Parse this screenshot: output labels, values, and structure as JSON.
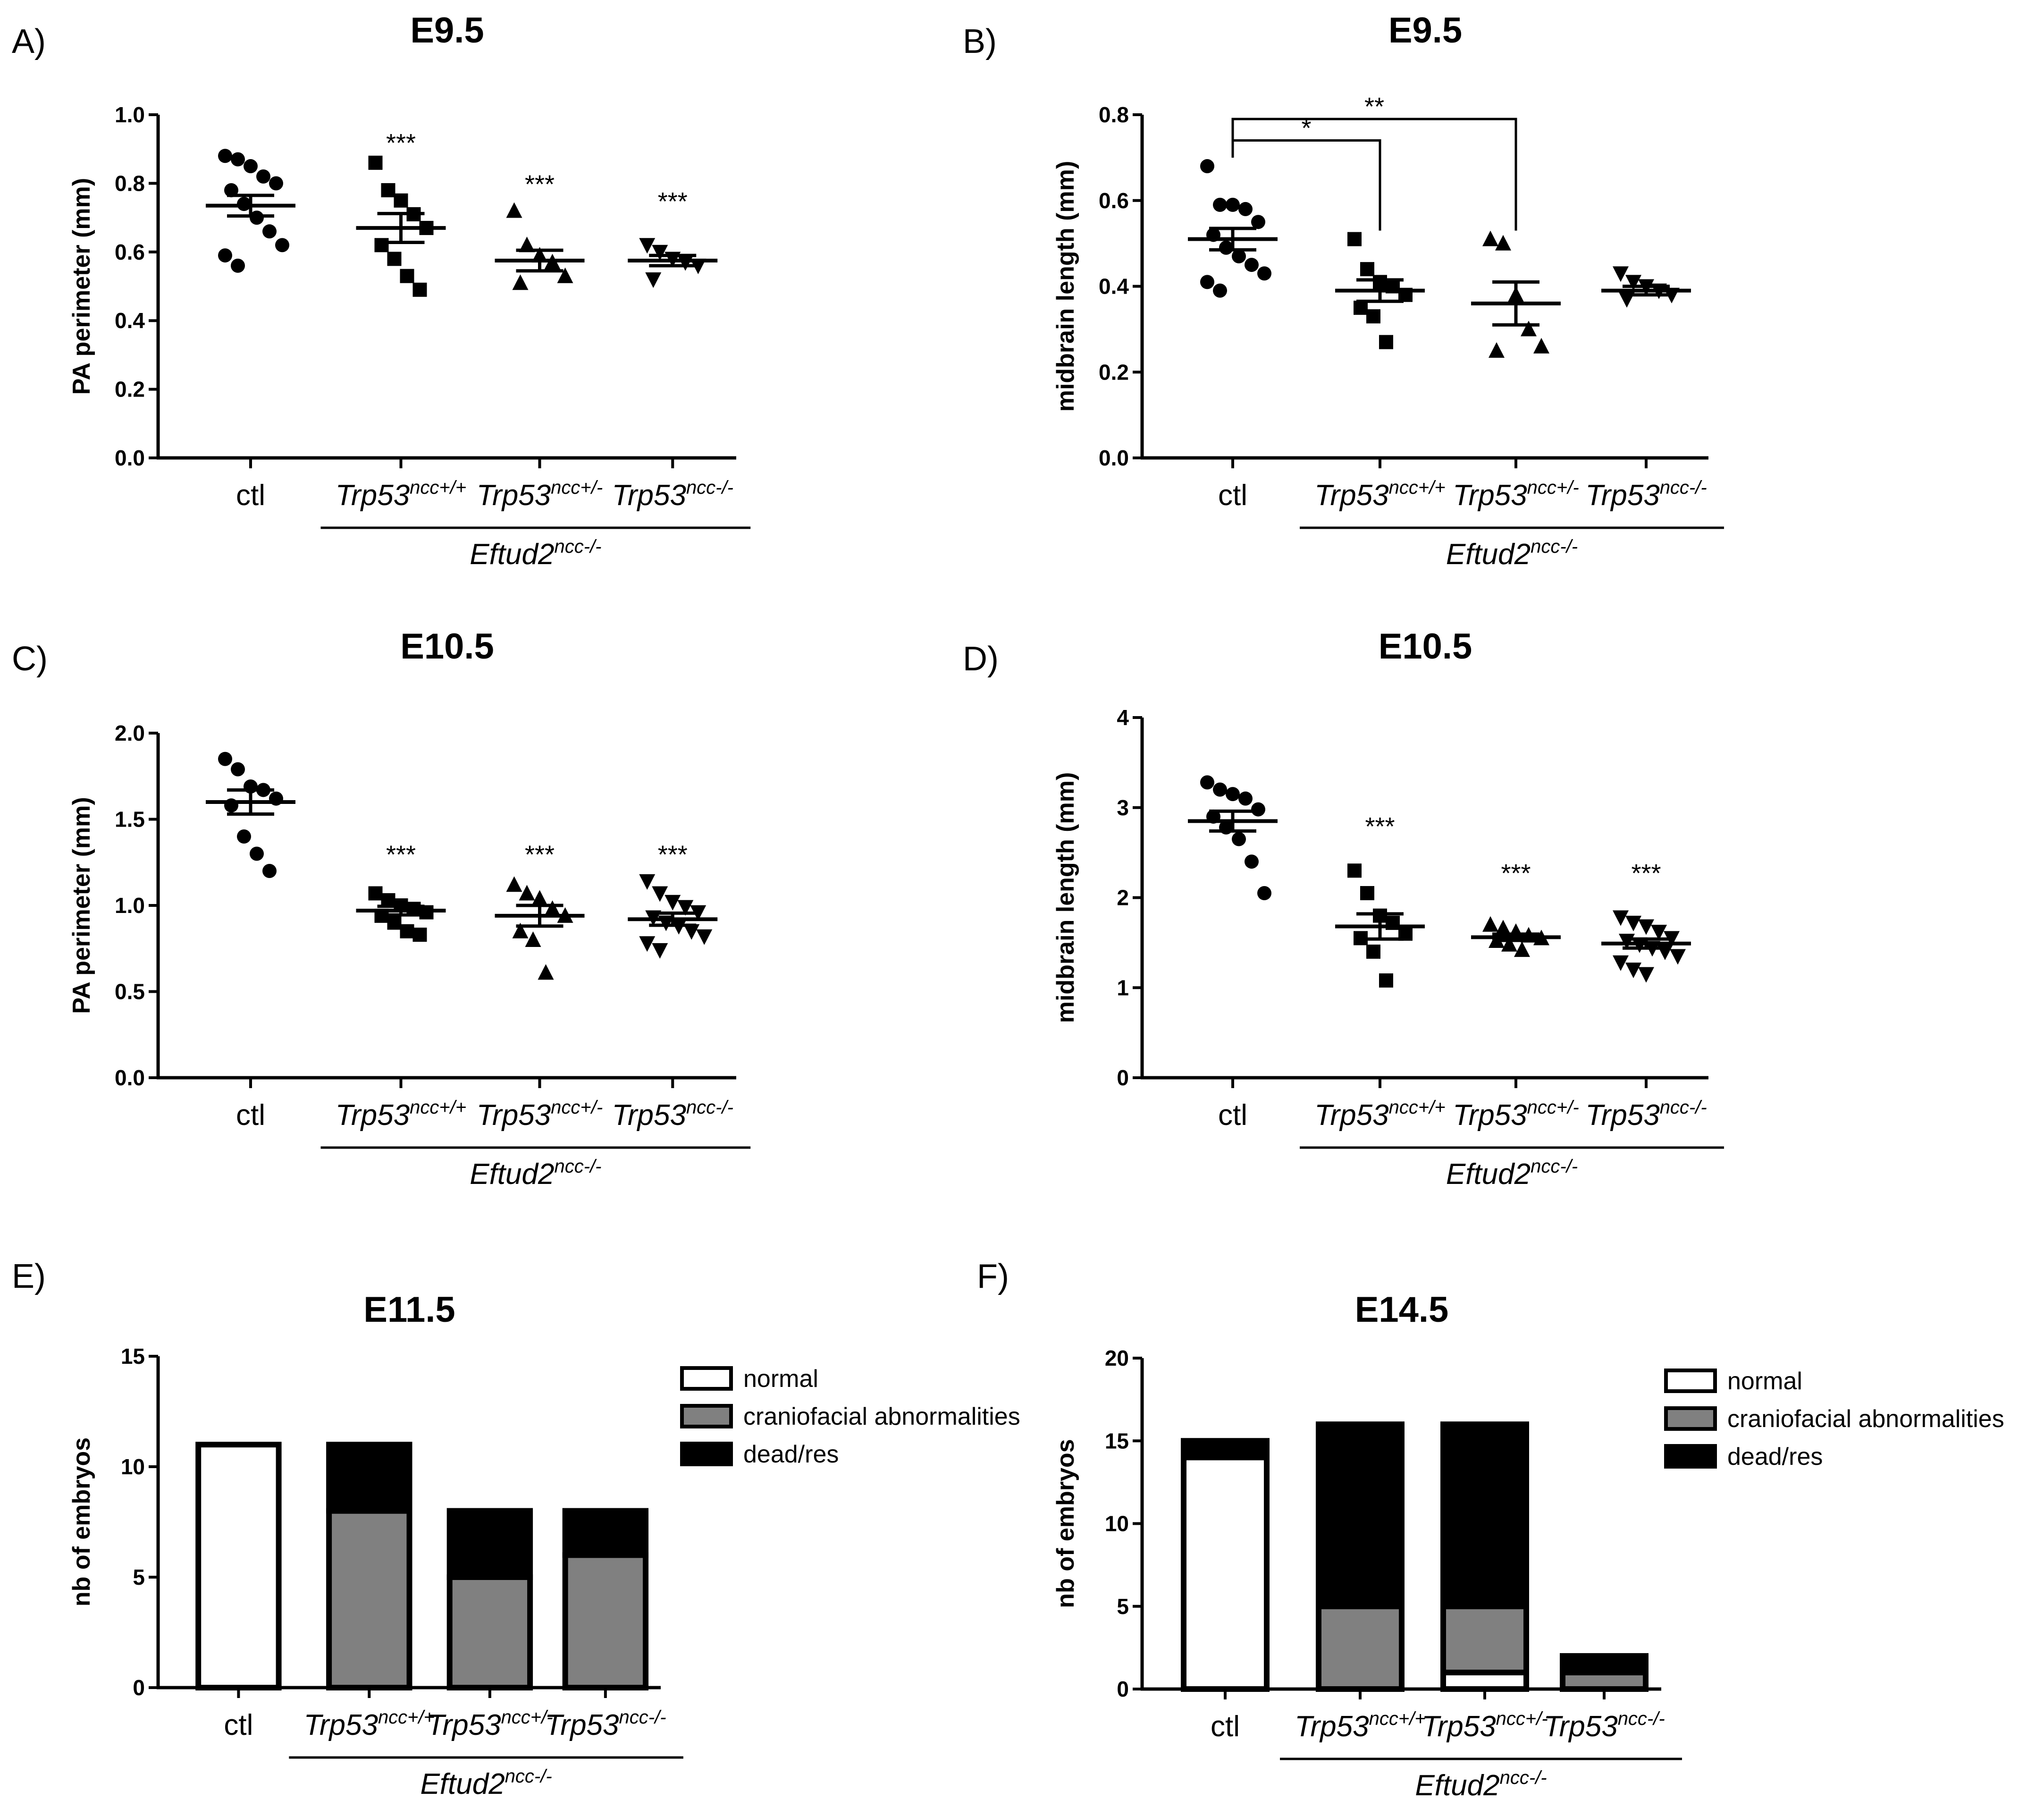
{
  "figure": {
    "colors": {
      "ink": "#000000",
      "gray": "#808080",
      "paper": "#ffffff"
    }
  },
  "chart_data": [
    {
      "id": "A",
      "panel": "A)",
      "type": "scatter",
      "title": "E9.5",
      "ylabel": "PA perimeter (mm)",
      "ylim": [
        0,
        1.0
      ],
      "yticks": [
        "0.0",
        "0.2",
        "0.4",
        "0.6",
        "0.8",
        "1.0"
      ],
      "categories": [
        {
          "base": "ctl",
          "sup": ""
        },
        {
          "base": "Trp53",
          "sup": "ncc+/+"
        },
        {
          "base": "Trp53",
          "sup": "ncc+/-"
        },
        {
          "base": "Trp53",
          "sup": "ncc-/-"
        }
      ],
      "group_label": {
        "base": "Eftud2",
        "sup": "ncc-/-"
      },
      "series": [
        {
          "marker": "circle",
          "points": [
            0.88,
            0.87,
            0.85,
            0.82,
            0.8,
            0.78,
            0.74,
            0.7,
            0.66,
            0.62,
            0.59,
            0.56
          ],
          "mean": 0.735,
          "sem": 0.03
        },
        {
          "marker": "square",
          "points": [
            0.86,
            0.78,
            0.75,
            0.71,
            0.67,
            0.62,
            0.58,
            0.53,
            0.49
          ],
          "mean": 0.67,
          "sem": 0.042
        },
        {
          "marker": "triangle-up",
          "points": [
            0.72,
            0.62,
            0.59,
            0.57,
            0.53,
            0.51
          ],
          "mean": 0.575,
          "sem": 0.03
        },
        {
          "marker": "triangle-down",
          "points": [
            0.62,
            0.6,
            0.58,
            0.57,
            0.56,
            0.52
          ],
          "mean": 0.575,
          "sem": 0.015
        }
      ],
      "annotations": [
        "",
        "***",
        "***",
        "***"
      ],
      "annotation_values": [
        null,
        0.92,
        0.8,
        0.75
      ],
      "brackets": []
    },
    {
      "id": "B",
      "panel": "B)",
      "type": "scatter",
      "title": "E9.5",
      "ylabel": "midbrain length (mm)",
      "ylim": [
        0,
        0.8
      ],
      "yticks": [
        "0.0",
        "0.2",
        "0.4",
        "0.6",
        "0.8"
      ],
      "categories": [
        {
          "base": "ctl",
          "sup": ""
        },
        {
          "base": "Trp53",
          "sup": "ncc+/+"
        },
        {
          "base": "Trp53",
          "sup": "ncc+/-"
        },
        {
          "base": "Trp53",
          "sup": "ncc-/-"
        }
      ],
      "group_label": {
        "base": "Eftud2",
        "sup": "ncc-/-"
      },
      "series": [
        {
          "marker": "circle",
          "points": [
            0.68,
            0.59,
            0.59,
            0.58,
            0.55,
            0.52,
            0.49,
            0.47,
            0.45,
            0.43,
            0.41,
            0.39
          ],
          "mean": 0.51,
          "sem": 0.025
        },
        {
          "marker": "square",
          "points": [
            0.51,
            0.44,
            0.41,
            0.4,
            0.38,
            0.35,
            0.33,
            0.27
          ],
          "mean": 0.39,
          "sem": 0.025
        },
        {
          "marker": "triangle-up",
          "points": [
            0.51,
            0.5,
            0.38,
            0.3,
            0.26,
            0.25
          ],
          "mean": 0.36,
          "sem": 0.05
        },
        {
          "marker": "triangle-down",
          "points": [
            0.43,
            0.41,
            0.4,
            0.39,
            0.38,
            0.37
          ],
          "mean": 0.39,
          "sem": 0.01
        }
      ],
      "annotations": [
        "",
        "",
        "",
        ""
      ],
      "annotation_values": [
        null,
        null,
        null,
        null
      ],
      "brackets": [
        {
          "from": 0,
          "to": 1,
          "level": 0.74,
          "label": "*"
        },
        {
          "from": 0,
          "to": 2,
          "level": 0.79,
          "label": "**"
        }
      ]
    },
    {
      "id": "C",
      "panel": "C)",
      "type": "scatter",
      "title": "E10.5",
      "ylabel": "PA perimeter (mm)",
      "ylim": [
        0,
        2.0
      ],
      "yticks": [
        "0.0",
        "0.5",
        "1.0",
        "1.5",
        "2.0"
      ],
      "categories": [
        {
          "base": "ctl",
          "sup": ""
        },
        {
          "base": "Trp53",
          "sup": "ncc+/+"
        },
        {
          "base": "Trp53",
          "sup": "ncc+/-"
        },
        {
          "base": "Trp53",
          "sup": "ncc-/-"
        }
      ],
      "group_label": {
        "base": "Eftud2",
        "sup": "ncc-/-"
      },
      "series": [
        {
          "marker": "circle",
          "points": [
            1.85,
            1.79,
            1.69,
            1.67,
            1.62,
            1.58,
            1.4,
            1.3,
            1.2
          ],
          "mean": 1.6,
          "sem": 0.07
        },
        {
          "marker": "square",
          "points": [
            1.07,
            1.03,
            1.0,
            0.98,
            0.96,
            0.94,
            0.9,
            0.85,
            0.83
          ],
          "mean": 0.97,
          "sem": 0.025
        },
        {
          "marker": "triangle-up",
          "points": [
            1.12,
            1.07,
            1.04,
            0.98,
            0.94,
            0.85,
            0.8,
            0.61
          ],
          "mean": 0.94,
          "sem": 0.06
        },
        {
          "marker": "triangle-down",
          "points": [
            1.14,
            1.07,
            1.02,
            0.99,
            0.96,
            0.93,
            0.9,
            0.88,
            0.85,
            0.82,
            0.78,
            0.74
          ],
          "mean": 0.92,
          "sem": 0.035
        }
      ],
      "annotations": [
        "",
        "***",
        "***",
        "***"
      ],
      "annotation_values": [
        null,
        1.3,
        1.3,
        1.3
      ],
      "brackets": []
    },
    {
      "id": "D",
      "panel": "D)",
      "type": "scatter",
      "title": "E10.5",
      "ylabel": "midbrain length (mm)",
      "ylim": [
        0,
        4
      ],
      "yticks": [
        "0",
        "1",
        "2",
        "3",
        "4"
      ],
      "categories": [
        {
          "base": "ctl",
          "sup": ""
        },
        {
          "base": "Trp53",
          "sup": "ncc+/+"
        },
        {
          "base": "Trp53",
          "sup": "ncc+/-"
        },
        {
          "base": "Trp53",
          "sup": "ncc-/-"
        }
      ],
      "group_label": {
        "base": "Eftud2",
        "sup": "ncc-/-"
      },
      "series": [
        {
          "marker": "circle",
          "points": [
            3.28,
            3.2,
            3.15,
            3.1,
            2.98,
            2.9,
            2.78,
            2.65,
            2.4,
            2.05
          ],
          "mean": 2.85,
          "sem": 0.11
        },
        {
          "marker": "square",
          "points": [
            2.3,
            2.05,
            1.8,
            1.72,
            1.6,
            1.55,
            1.4,
            1.08
          ],
          "mean": 1.68,
          "sem": 0.14
        },
        {
          "marker": "triangle-up",
          "points": [
            1.7,
            1.66,
            1.62,
            1.58,
            1.55,
            1.52,
            1.48,
            1.42
          ],
          "mean": 1.56,
          "sem": 0.035
        },
        {
          "marker": "triangle-down",
          "points": [
            1.78,
            1.72,
            1.68,
            1.62,
            1.55,
            1.52,
            1.48,
            1.44,
            1.4,
            1.35,
            1.28,
            1.2,
            1.15
          ],
          "mean": 1.49,
          "sem": 0.05
        }
      ],
      "annotations": [
        "",
        "***",
        "***",
        "***"
      ],
      "annotation_values": [
        null,
        2.8,
        2.28,
        2.28
      ],
      "brackets": []
    },
    {
      "id": "E",
      "panel": "E)",
      "type": "bar",
      "stacked": true,
      "title": "E11.5",
      "ylabel": "nb of embryos",
      "ylim": [
        0,
        15
      ],
      "yticks": [
        "0",
        "5",
        "10",
        "15"
      ],
      "categories": [
        {
          "base": "ctl",
          "sup": ""
        },
        {
          "base": "Trp53",
          "sup": "ncc+/+"
        },
        {
          "base": "Trp53",
          "sup": "ncc+/-"
        },
        {
          "base": "Trp53",
          "sup": "ncc-/-"
        }
      ],
      "group_label": {
        "base": "Eftud2",
        "sup": "ncc-/-"
      },
      "series": [
        {
          "name": "normal",
          "color": "#ffffff",
          "values": [
            11,
            0,
            0,
            0
          ]
        },
        {
          "name": "craniofacial abnormalities",
          "color": "#808080",
          "values": [
            0,
            8,
            5,
            6
          ]
        },
        {
          "name": "dead/res",
          "color": "#000000",
          "values": [
            0,
            3,
            3,
            2
          ]
        }
      ]
    },
    {
      "id": "F",
      "panel": "F)",
      "type": "bar",
      "stacked": true,
      "title": "E14.5",
      "ylabel": "nb of embryos",
      "ylim": [
        0,
        20
      ],
      "yticks": [
        "0",
        "5",
        "10",
        "15",
        "20"
      ],
      "categories": [
        {
          "base": "ctl",
          "sup": ""
        },
        {
          "base": "Trp53",
          "sup": "ncc+/+"
        },
        {
          "base": "Trp53",
          "sup": "ncc+/-"
        },
        {
          "base": "Trp53",
          "sup": "ncc-/-"
        }
      ],
      "group_label": {
        "base": "Eftud2",
        "sup": "ncc-/-"
      },
      "series": [
        {
          "name": "normal",
          "color": "#ffffff",
          "values": [
            14,
            0,
            1,
            0
          ]
        },
        {
          "name": "craniofacial abnormalities",
          "color": "#808080",
          "values": [
            0,
            5,
            4,
            1
          ]
        },
        {
          "name": "dead/res",
          "color": "#000000",
          "values": [
            1,
            11,
            11,
            1
          ]
        }
      ]
    }
  ]
}
